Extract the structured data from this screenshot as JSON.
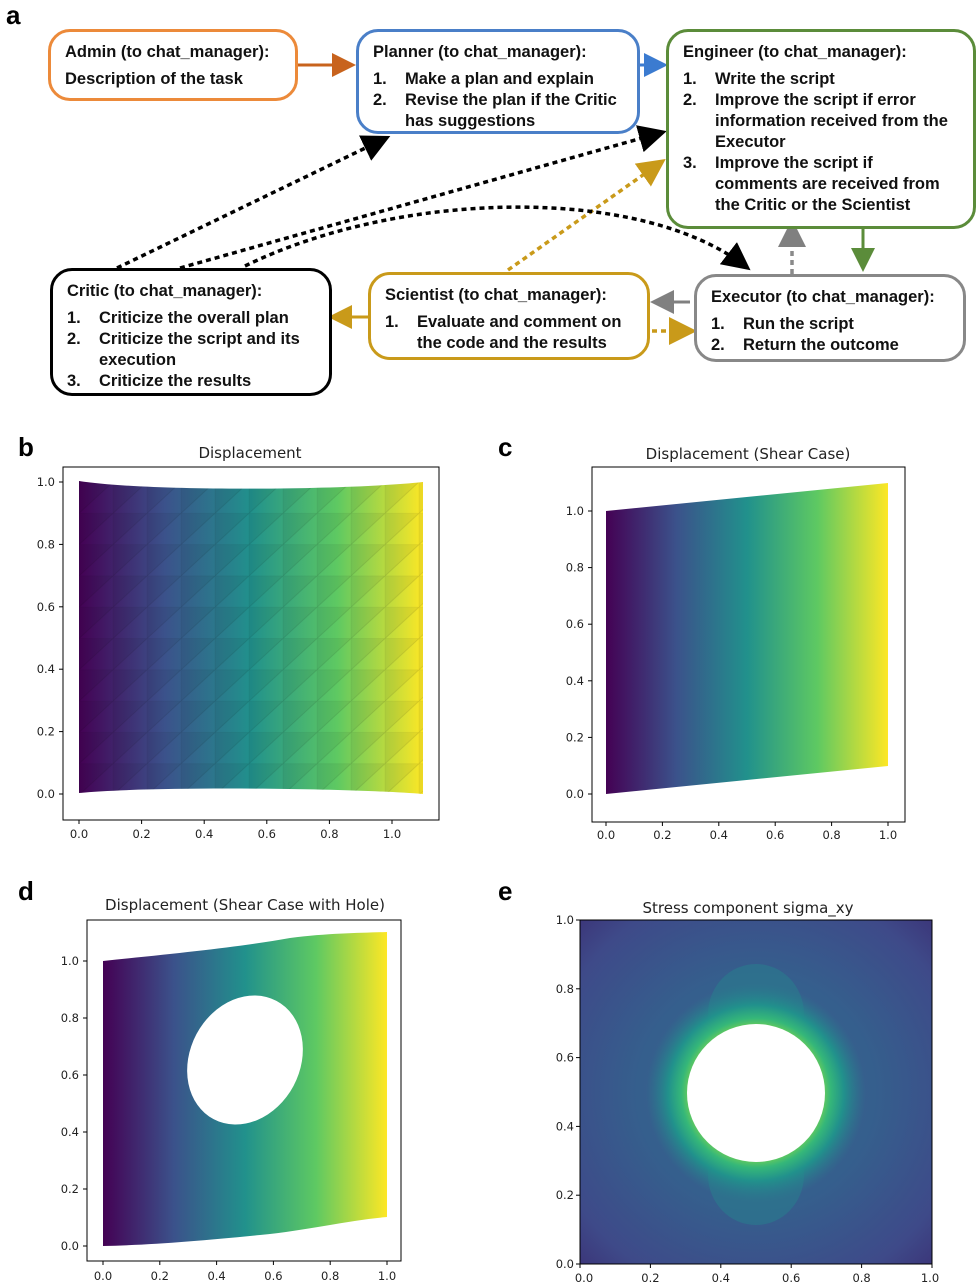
{
  "panels": {
    "a": "a",
    "b": "b",
    "c": "c",
    "d": "d",
    "e": "e"
  },
  "diagram": {
    "admin": {
      "title": "Admin (to chat_manager):",
      "body": "Description of the task",
      "color": "#ec8a3a"
    },
    "planner": {
      "title": "Planner (to chat_manager):",
      "items": [
        {
          "n": "1.",
          "t": "Make a plan and explain"
        },
        {
          "n": "2.",
          "t": "Revise the plan if the Critic has suggestions"
        }
      ],
      "color": "#4a7fc8"
    },
    "engineer": {
      "title": "Engineer (to chat_manager):",
      "items": [
        {
          "n": "1.",
          "t": "Write the script"
        },
        {
          "n": "2.",
          "t": "Improve the script if error information received from the Executor"
        },
        {
          "n": "3.",
          "t": "Improve the script if comments are received from the Critic or the Scientist"
        }
      ],
      "color": "#5b8c3a"
    },
    "critic": {
      "title": "Critic (to chat_manager):",
      "items": [
        {
          "n": "1.",
          "t": "Criticize the overall plan"
        },
        {
          "n": "2.",
          "t": "Criticize the script and its execution"
        },
        {
          "n": "3.",
          "t": "Criticize the results"
        }
      ],
      "color": "#000000"
    },
    "scientist": {
      "title": "Scientist (to chat_manager):",
      "items": [
        {
          "n": "1.",
          "t": "Evaluate and comment on the code and the results"
        }
      ],
      "color": "#c99a1a"
    },
    "executor": {
      "title": "Executor (to chat_manager):",
      "items": [
        {
          "n": "1.",
          "t": "Run the script"
        },
        {
          "n": "2.",
          "t": "Return the outcome"
        }
      ],
      "color": "#888888"
    }
  },
  "plots": {
    "b": {
      "title": "Displacement",
      "xticks": [
        "0.0",
        "0.2",
        "0.4",
        "0.6",
        "0.8",
        "1.0"
      ],
      "yticks": [
        "0.0",
        "0.2",
        "0.4",
        "0.6",
        "0.8",
        "1.0"
      ]
    },
    "c": {
      "title": "Displacement (Shear Case)",
      "xticks": [
        "0.0",
        "0.2",
        "0.4",
        "0.6",
        "0.8",
        "1.0"
      ],
      "yticks": [
        "0.0",
        "0.2",
        "0.4",
        "0.6",
        "0.8",
        "1.0"
      ]
    },
    "d": {
      "title": "Displacement (Shear Case with Hole)",
      "xticks": [
        "0.0",
        "0.2",
        "0.4",
        "0.6",
        "0.8",
        "1.0"
      ],
      "yticks": [
        "0.0",
        "0.2",
        "0.4",
        "0.6",
        "0.8",
        "1.0"
      ]
    },
    "e": {
      "title": "Stress component sigma_xy",
      "xticks": [
        "0.0",
        "0.2",
        "0.4",
        "0.6",
        "0.8",
        "1.0"
      ],
      "yticks": [
        "0.0",
        "0.2",
        "0.4",
        "0.6",
        "0.8",
        "1.0"
      ]
    }
  }
}
